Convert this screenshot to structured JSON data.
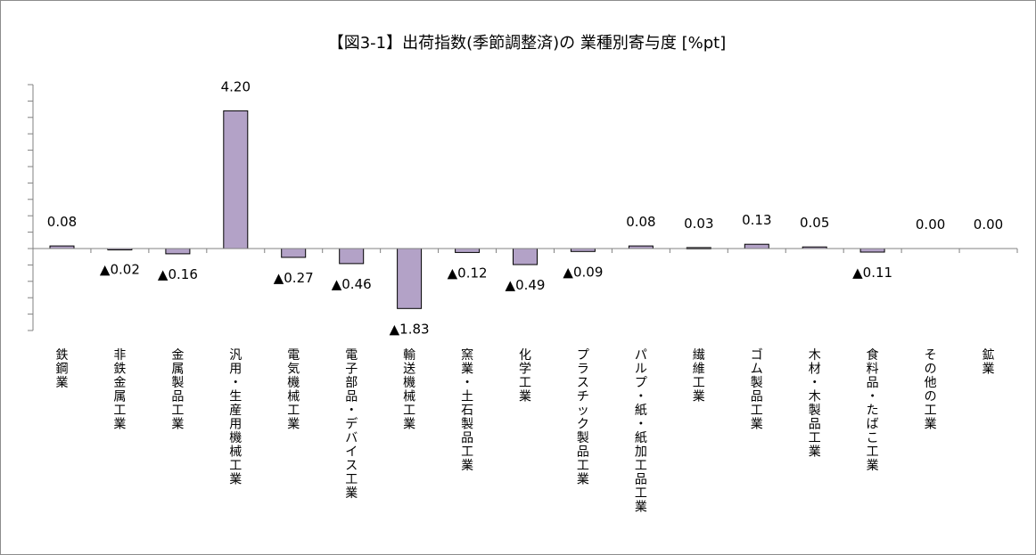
{
  "chart_data": {
    "type": "bar",
    "title": "【図3-1】出荷指数(季節調整済)の 業種別寄与度 [%pt]",
    "xlabel": "",
    "ylabel": "",
    "ylim": [
      -2.5,
      5.0
    ],
    "grid": false,
    "legend": "none",
    "categories": [
      "鉄鋼業",
      "非鉄金属工業",
      "金属製品工業",
      "汎用・生産用機械工業",
      "電気機械工業",
      "電子部品・デバイス工業",
      "輸送機械工業",
      "窯業・土石製品工業",
      "化学工業",
      "プラスチック製品工業",
      "パルプ・紙・紙加工品工業",
      "繊維工業",
      "ゴム製品工業",
      "木材・木製品工業",
      "食料品・たばこ工業",
      "その他の工業",
      "鉱業"
    ],
    "values": [
      0.08,
      -0.02,
      -0.16,
      4.2,
      -0.27,
      -0.46,
      -1.83,
      -0.12,
      -0.49,
      -0.09,
      0.08,
      0.03,
      0.13,
      0.05,
      -0.11,
      0.0,
      0.0
    ],
    "data_labels": [
      "0.08",
      "▲0.02",
      "▲0.16",
      "4.20",
      "▲0.27",
      "▲0.46",
      "▲1.83",
      "▲0.12",
      "▲0.49",
      "▲0.09",
      "0.08",
      "0.03",
      "0.13",
      "0.05",
      "▲0.11",
      "0.00",
      "0.00"
    ],
    "colors": {
      "bar_fill": "#b3a2c7",
      "bar_stroke": "#000000",
      "axis": "#808080"
    }
  }
}
